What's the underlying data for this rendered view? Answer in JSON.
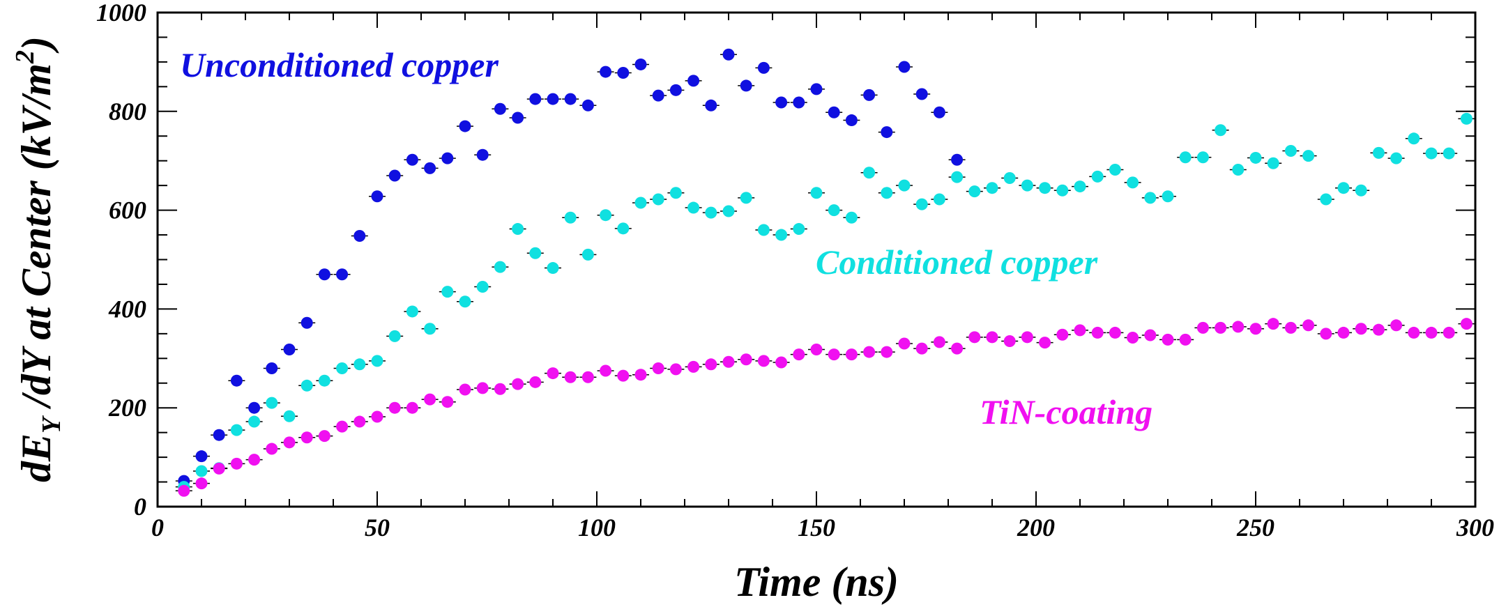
{
  "chart_data": {
    "type": "scatter",
    "title": "",
    "xlabel": "Time (ns)",
    "ylabel": {
      "main": "dE",
      "sub": "Y",
      "rest": " /dY at Center (kV/m",
      "sup": "2",
      "end": ")"
    },
    "xlim": [
      0,
      300
    ],
    "ylim": [
      0,
      1000
    ],
    "x_ticks": [
      0,
      50,
      100,
      150,
      200,
      250,
      300
    ],
    "y_ticks": [
      0,
      200,
      400,
      600,
      800,
      1000
    ],
    "grid": false,
    "series": [
      {
        "name": "Unconditioned copper",
        "color": "#1010e0",
        "x": [
          6,
          10,
          14,
          18,
          22,
          26,
          30,
          34,
          38,
          42,
          46,
          50,
          54,
          58,
          62,
          66,
          70,
          74,
          78,
          82,
          86,
          90,
          94,
          98,
          102,
          106,
          110,
          114,
          118,
          122,
          126,
          130,
          134,
          138,
          142,
          146,
          150,
          154,
          158,
          162,
          166,
          170,
          174,
          178,
          182
        ],
        "y": [
          52,
          102,
          145,
          255,
          200,
          280,
          318,
          372,
          470,
          470,
          548,
          628,
          670,
          702,
          685,
          705,
          770,
          712,
          805,
          787,
          825,
          825,
          825,
          812,
          880,
          878,
          895,
          832,
          843,
          862,
          812,
          915,
          852,
          888,
          818,
          818,
          845,
          798,
          782,
          833,
          758,
          890,
          835,
          798,
          702
        ]
      },
      {
        "name": "Conditioned copper",
        "color": "#10e0e0",
        "x": [
          6,
          10,
          14,
          18,
          22,
          26,
          30,
          34,
          38,
          42,
          46,
          50,
          54,
          58,
          62,
          66,
          70,
          74,
          78,
          82,
          86,
          90,
          94,
          98,
          102,
          106,
          110,
          114,
          118,
          122,
          126,
          130,
          134,
          138,
          142,
          146,
          150,
          154,
          158,
          162,
          166,
          170,
          174,
          178,
          182,
          186,
          190,
          194,
          198,
          202,
          206,
          210,
          214,
          218,
          222,
          226,
          230,
          234,
          238,
          242,
          246,
          250,
          254,
          258,
          262,
          266,
          270,
          274,
          278,
          282,
          286,
          290,
          294,
          298
        ],
        "y": [
          40,
          72,
          78,
          155,
          172,
          210,
          183,
          245,
          255,
          280,
          288,
          295,
          345,
          395,
          360,
          435,
          415,
          445,
          485,
          562,
          513,
          483,
          585,
          510,
          590,
          563,
          615,
          622,
          635,
          605,
          595,
          598,
          625,
          560,
          550,
          562,
          635,
          600,
          585,
          676,
          635,
          650,
          612,
          622,
          667,
          638,
          645,
          665,
          650,
          645,
          640,
          648,
          668,
          682,
          656,
          625,
          628,
          707,
          707,
          762,
          682,
          706,
          695,
          720,
          710,
          622,
          645,
          640,
          716,
          705,
          745,
          715,
          715,
          785
        ]
      },
      {
        "name": "TiN-coating",
        "color": "#f010f0",
        "x": [
          6,
          10,
          14,
          18,
          22,
          26,
          30,
          34,
          38,
          42,
          46,
          50,
          54,
          58,
          62,
          66,
          70,
          74,
          78,
          82,
          86,
          90,
          94,
          98,
          102,
          106,
          110,
          114,
          118,
          122,
          126,
          130,
          134,
          138,
          142,
          146,
          150,
          154,
          158,
          162,
          166,
          170,
          174,
          178,
          182,
          186,
          190,
          194,
          198,
          202,
          206,
          210,
          214,
          218,
          222,
          226,
          230,
          234,
          238,
          242,
          246,
          250,
          254,
          258,
          262,
          266,
          270,
          274,
          278,
          282,
          286,
          290,
          294,
          298
        ],
        "y": [
          32,
          47,
          77,
          87,
          95,
          117,
          130,
          140,
          143,
          162,
          172,
          182,
          200,
          200,
          217,
          212,
          237,
          240,
          238,
          248,
          252,
          270,
          262,
          262,
          275,
          265,
          267,
          280,
          278,
          283,
          288,
          293,
          298,
          295,
          292,
          308,
          318,
          308,
          308,
          313,
          313,
          330,
          320,
          333,
          320,
          343,
          343,
          335,
          343,
          332,
          348,
          357,
          352,
          352,
          342,
          347,
          338,
          338,
          362,
          362,
          364,
          360,
          370,
          362,
          367,
          350,
          352,
          360,
          358,
          367,
          352,
          352,
          352,
          370
        ]
      }
    ],
    "annotations": [
      {
        "text": "Unconditioned copper",
        "series": 0
      },
      {
        "text": "Conditioned copper",
        "series": 1
      },
      {
        "text": "TiN-coating",
        "series": 2
      }
    ]
  }
}
